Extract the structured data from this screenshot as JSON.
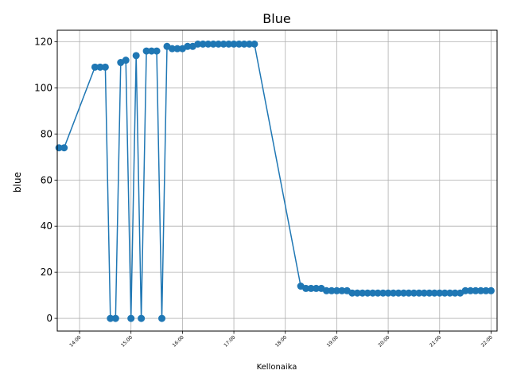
{
  "chart_data": {
    "type": "line",
    "title": "Blue",
    "xlabel": "Kellonaika",
    "ylabel": "blue",
    "grid": true,
    "series_color": "#1f77b4",
    "xlim": [
      "13:34",
      "22:07"
    ],
    "ylim": [
      -5.5,
      125
    ],
    "x_ticks": [
      "14:00",
      "15:00",
      "16:00",
      "17:00",
      "18:00",
      "19:00",
      "20:00",
      "21:00",
      "22:00"
    ],
    "y_ticks": [
      0,
      20,
      40,
      60,
      80,
      100,
      120
    ],
    "series": [
      {
        "x": [
          "13:36",
          "13:42",
          "14:18",
          "14:24",
          "14:30",
          "14:36",
          "14:42",
          "14:48",
          "14:54",
          "15:00",
          "15:06",
          "15:12",
          "15:18",
          "15:24",
          "15:30",
          "15:36",
          "15:42",
          "15:48",
          "15:54",
          "16:00",
          "16:06",
          "16:12",
          "16:18",
          "16:24",
          "16:30",
          "16:36",
          "16:42",
          "16:48",
          "16:54",
          "17:00",
          "17:06",
          "17:12",
          "17:18",
          "17:24",
          "18:18",
          "18:24",
          "18:30",
          "18:36",
          "18:42",
          "18:48",
          "18:54",
          "19:00",
          "19:06",
          "19:12",
          "19:18",
          "19:24",
          "19:30",
          "19:36",
          "19:42",
          "19:48",
          "19:54",
          "20:00",
          "20:06",
          "20:12",
          "20:18",
          "20:24",
          "20:30",
          "20:36",
          "20:42",
          "20:48",
          "20:54",
          "21:00",
          "21:06",
          "21:12",
          "21:18",
          "21:24",
          "21:30",
          "21:36",
          "21:42",
          "21:48",
          "21:54",
          "22:00"
        ],
        "values": [
          74,
          74,
          109,
          109,
          109,
          0,
          0,
          111,
          112,
          0,
          114,
          0,
          116,
          116,
          116,
          0,
          118,
          117,
          117,
          117,
          118,
          118,
          119,
          119,
          119,
          119,
          119,
          119,
          119,
          119,
          119,
          119,
          119,
          119,
          14,
          13,
          13,
          13,
          13,
          12,
          12,
          12,
          12,
          12,
          11,
          11,
          11,
          11,
          11,
          11,
          11,
          11,
          11,
          11,
          11,
          11,
          11,
          11,
          11,
          11,
          11,
          11,
          11,
          11,
          11,
          11,
          12,
          12,
          12,
          12,
          12,
          12
        ]
      }
    ]
  }
}
